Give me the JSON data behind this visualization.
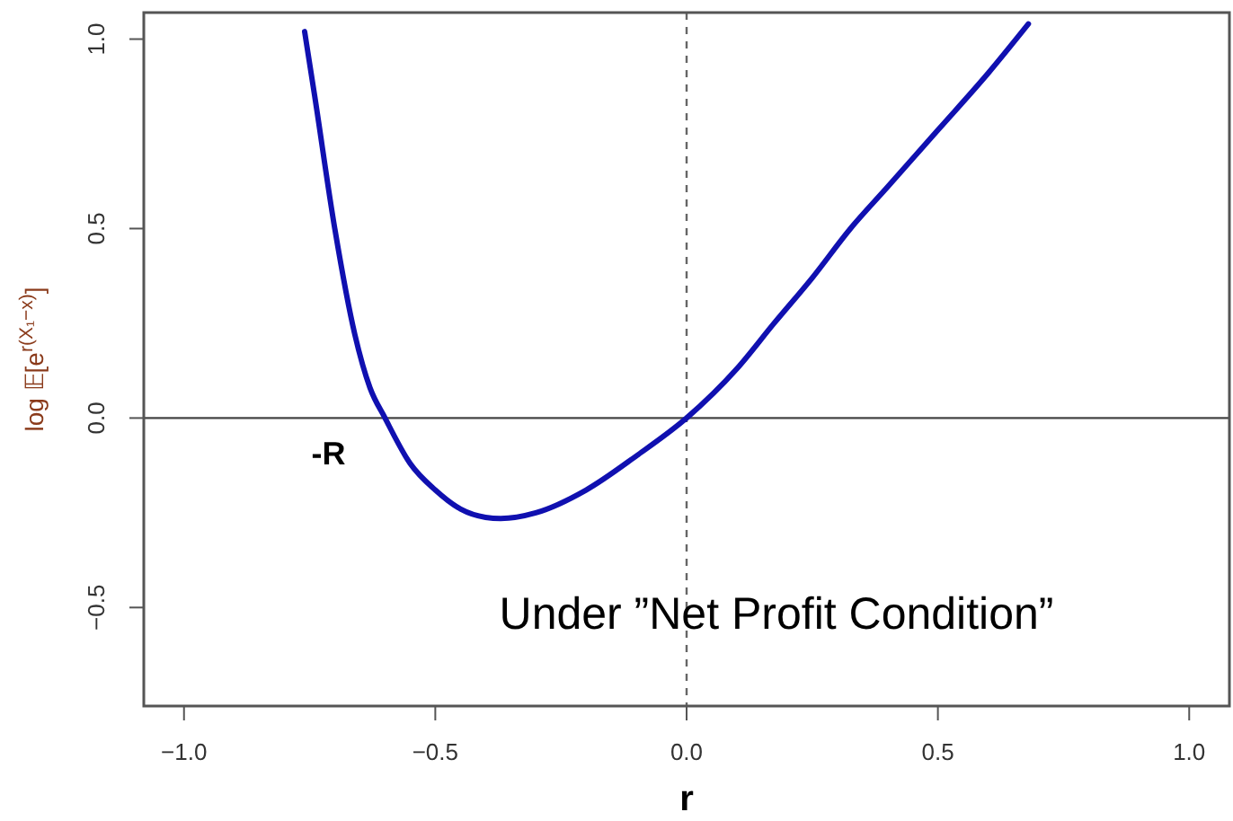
{
  "chart_data": {
    "type": "line",
    "xlabel": "r",
    "ylabel": "log 𝔼[e$^{r(X₁−x)}$]",
    "xlim": [
      -1.08,
      1.08
    ],
    "ylim": [
      -0.76,
      1.07
    ],
    "xticks": [
      {
        "value": -1,
        "label": "−1.0"
      },
      {
        "value": -0.5,
        "label": "−0.5"
      },
      {
        "value": 0,
        "label": "0.0"
      },
      {
        "value": 0.5,
        "label": "0.5"
      },
      {
        "value": 1,
        "label": "1.0"
      }
    ],
    "yticks": [
      {
        "value": -0.5,
        "label": "−0.5"
      },
      {
        "value": 0,
        "label": "0.0"
      },
      {
        "value": 0.5,
        "label": "0.5"
      },
      {
        "value": 1,
        "label": "1.0"
      }
    ],
    "series": [
      {
        "color": "#1010b0",
        "x": [
          -0.76,
          -0.74,
          -0.7,
          -0.66,
          -0.63,
          -0.6,
          -0.55,
          -0.5,
          -0.45,
          -0.4,
          -0.37,
          -0.3,
          -0.2,
          -0.1,
          0,
          0.1,
          0.174,
          0.25,
          0.326,
          0.4,
          0.5,
          0.6,
          0.68
        ],
        "values": [
          1.02,
          0.85,
          0.5,
          0.22,
          0.08,
          0,
          -0.12,
          -0.19,
          -0.24,
          -0.262,
          -0.265,
          -0.25,
          -0.19,
          -0.1,
          0,
          0.13,
          0.25,
          0.37,
          0.5,
          0.61,
          0.76,
          0.91,
          1.04
        ]
      }
    ],
    "ref_lines": [
      {
        "axis": "y",
        "value": 0,
        "color": "#444444",
        "line_style": "solid"
      },
      {
        "axis": "x",
        "value": 0,
        "color": "#666666",
        "line_style": "dashed"
      }
    ],
    "annotations": [
      {
        "text": "-R",
        "x": -0.6,
        "y": 0
      },
      "Under ”Net Profit Condition”"
    ],
    "grid": false,
    "marker": "none",
    "line_style": "solid"
  }
}
